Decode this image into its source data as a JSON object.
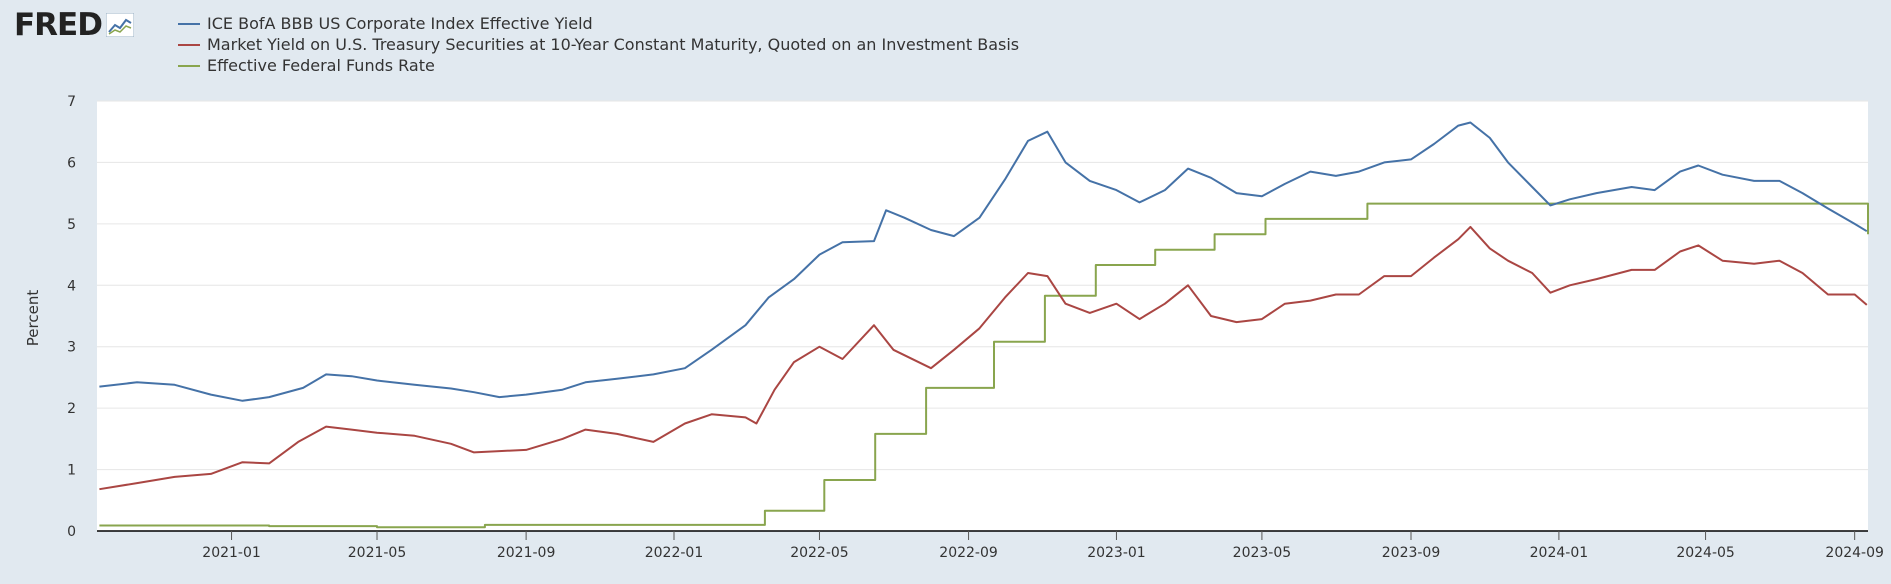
{
  "brand": {
    "logo_text": "FRED",
    "icon": "fred-chart-icon"
  },
  "legend_position": "top-left",
  "chart_data": {
    "type": "line",
    "title": "",
    "xlabel": "",
    "ylabel": "Percent",
    "ylim": [
      0,
      7
    ],
    "y_ticks": [
      0,
      1,
      2,
      3,
      4,
      5,
      6,
      7
    ],
    "xlim": [
      "2020-09-12",
      "2024-09-12"
    ],
    "x_ticks": [
      "2021-01",
      "2021-05",
      "2021-09",
      "2022-01",
      "2022-05",
      "2022-09",
      "2023-01",
      "2023-05",
      "2023-09",
      "2024-01",
      "2024-05",
      "2024-09"
    ],
    "grid": {
      "horizontal": true,
      "vertical": false
    },
    "series": [
      {
        "name": "ICE BofA BBB US Corporate Index Effective Yield",
        "color": "#4572a7",
        "points": [
          [
            "2020-09-14",
            2.35
          ],
          [
            "2020-10-15",
            2.42
          ],
          [
            "2020-11-15",
            2.38
          ],
          [
            "2020-12-15",
            2.22
          ],
          [
            "2021-01-10",
            2.12
          ],
          [
            "2021-02-01",
            2.18
          ],
          [
            "2021-03-01",
            2.33
          ],
          [
            "2021-03-20",
            2.55
          ],
          [
            "2021-04-10",
            2.52
          ],
          [
            "2021-05-01",
            2.45
          ],
          [
            "2021-06-01",
            2.38
          ],
          [
            "2021-07-01",
            2.32
          ],
          [
            "2021-07-20",
            2.26
          ],
          [
            "2021-08-10",
            2.18
          ],
          [
            "2021-09-01",
            2.22
          ],
          [
            "2021-10-01",
            2.3
          ],
          [
            "2021-10-20",
            2.42
          ],
          [
            "2021-11-15",
            2.48
          ],
          [
            "2021-12-15",
            2.55
          ],
          [
            "2022-01-10",
            2.65
          ],
          [
            "2022-02-01",
            2.95
          ],
          [
            "2022-03-01",
            3.35
          ],
          [
            "2022-03-20",
            3.8
          ],
          [
            "2022-04-10",
            4.1
          ],
          [
            "2022-05-01",
            4.5
          ],
          [
            "2022-05-20",
            4.7
          ],
          [
            "2022-06-15",
            4.72
          ],
          [
            "2022-06-25",
            5.22
          ],
          [
            "2022-07-10",
            5.1
          ],
          [
            "2022-08-01",
            4.9
          ],
          [
            "2022-08-20",
            4.8
          ],
          [
            "2022-09-10",
            5.1
          ],
          [
            "2022-10-01",
            5.72
          ],
          [
            "2022-10-20",
            6.35
          ],
          [
            "2022-11-05",
            6.5
          ],
          [
            "2022-11-20",
            6.0
          ],
          [
            "2022-12-10",
            5.7
          ],
          [
            "2023-01-01",
            5.55
          ],
          [
            "2023-01-20",
            5.35
          ],
          [
            "2023-02-10",
            5.55
          ],
          [
            "2023-03-01",
            5.9
          ],
          [
            "2023-03-20",
            5.75
          ],
          [
            "2023-04-10",
            5.5
          ],
          [
            "2023-05-01",
            5.45
          ],
          [
            "2023-05-20",
            5.65
          ],
          [
            "2023-06-10",
            5.85
          ],
          [
            "2023-07-01",
            5.78
          ],
          [
            "2023-07-20",
            5.85
          ],
          [
            "2023-08-10",
            6.0
          ],
          [
            "2023-09-01",
            6.05
          ],
          [
            "2023-09-20",
            6.3
          ],
          [
            "2023-10-10",
            6.6
          ],
          [
            "2023-10-20",
            6.65
          ],
          [
            "2023-11-05",
            6.4
          ],
          [
            "2023-11-20",
            6.0
          ],
          [
            "2023-12-10",
            5.6
          ],
          [
            "2023-12-25",
            5.3
          ],
          [
            "2024-01-10",
            5.4
          ],
          [
            "2024-02-01",
            5.5
          ],
          [
            "2024-03-01",
            5.6
          ],
          [
            "2024-03-20",
            5.55
          ],
          [
            "2024-04-10",
            5.85
          ],
          [
            "2024-04-25",
            5.95
          ],
          [
            "2024-05-15",
            5.8
          ],
          [
            "2024-06-10",
            5.7
          ],
          [
            "2024-07-01",
            5.7
          ],
          [
            "2024-07-20",
            5.5
          ],
          [
            "2024-08-10",
            5.25
          ],
          [
            "2024-09-01",
            5.0
          ],
          [
            "2024-09-11",
            4.88
          ]
        ]
      },
      {
        "name": "Market Yield on U.S. Treasury Securities at 10-Year Constant Maturity, Quoted on an Investment Basis",
        "color": "#aa4643",
        "points": [
          [
            "2020-09-14",
            0.68
          ],
          [
            "2020-10-15",
            0.78
          ],
          [
            "2020-11-15",
            0.88
          ],
          [
            "2020-12-15",
            0.93
          ],
          [
            "2021-01-10",
            1.12
          ],
          [
            "2021-02-01",
            1.1
          ],
          [
            "2021-02-25",
            1.45
          ],
          [
            "2021-03-20",
            1.7
          ],
          [
            "2021-04-10",
            1.65
          ],
          [
            "2021-05-01",
            1.6
          ],
          [
            "2021-06-01",
            1.55
          ],
          [
            "2021-07-01",
            1.42
          ],
          [
            "2021-07-20",
            1.28
          ],
          [
            "2021-08-10",
            1.3
          ],
          [
            "2021-09-01",
            1.32
          ],
          [
            "2021-10-01",
            1.5
          ],
          [
            "2021-10-20",
            1.65
          ],
          [
            "2021-11-15",
            1.58
          ],
          [
            "2021-12-15",
            1.45
          ],
          [
            "2022-01-10",
            1.75
          ],
          [
            "2022-02-01",
            1.9
          ],
          [
            "2022-03-01",
            1.85
          ],
          [
            "2022-03-10",
            1.75
          ],
          [
            "2022-03-25",
            2.3
          ],
          [
            "2022-04-10",
            2.75
          ],
          [
            "2022-05-01",
            3.0
          ],
          [
            "2022-05-20",
            2.8
          ],
          [
            "2022-06-15",
            3.35
          ],
          [
            "2022-07-01",
            2.95
          ],
          [
            "2022-08-01",
            2.65
          ],
          [
            "2022-08-20",
            2.95
          ],
          [
            "2022-09-10",
            3.3
          ],
          [
            "2022-10-01",
            3.8
          ],
          [
            "2022-10-20",
            4.2
          ],
          [
            "2022-11-05",
            4.15
          ],
          [
            "2022-11-20",
            3.7
          ],
          [
            "2022-12-10",
            3.55
          ],
          [
            "2023-01-01",
            3.7
          ],
          [
            "2023-01-20",
            3.45
          ],
          [
            "2023-02-10",
            3.7
          ],
          [
            "2023-03-01",
            4.0
          ],
          [
            "2023-03-20",
            3.5
          ],
          [
            "2023-04-10",
            3.4
          ],
          [
            "2023-05-01",
            3.45
          ],
          [
            "2023-05-20",
            3.7
          ],
          [
            "2023-06-10",
            3.75
          ],
          [
            "2023-07-01",
            3.85
          ],
          [
            "2023-07-20",
            3.85
          ],
          [
            "2023-08-10",
            4.15
          ],
          [
            "2023-09-01",
            4.15
          ],
          [
            "2023-09-20",
            4.45
          ],
          [
            "2023-10-10",
            4.75
          ],
          [
            "2023-10-20",
            4.95
          ],
          [
            "2023-11-05",
            4.6
          ],
          [
            "2023-11-20",
            4.4
          ],
          [
            "2023-12-10",
            4.2
          ],
          [
            "2023-12-25",
            3.88
          ],
          [
            "2024-01-10",
            4.0
          ],
          [
            "2024-02-01",
            4.1
          ],
          [
            "2024-03-01",
            4.25
          ],
          [
            "2024-03-20",
            4.25
          ],
          [
            "2024-04-10",
            4.55
          ],
          [
            "2024-04-25",
            4.65
          ],
          [
            "2024-05-15",
            4.4
          ],
          [
            "2024-06-10",
            4.35
          ],
          [
            "2024-07-01",
            4.4
          ],
          [
            "2024-07-20",
            4.2
          ],
          [
            "2024-08-10",
            3.85
          ],
          [
            "2024-09-01",
            3.85
          ],
          [
            "2024-09-11",
            3.68
          ]
        ]
      },
      {
        "name": "Effective Federal Funds Rate",
        "color": "#89a54e",
        "step": true,
        "points": [
          [
            "2020-09-14",
            0.09
          ],
          [
            "2021-02-01",
            0.08
          ],
          [
            "2021-05-01",
            0.06
          ],
          [
            "2021-07-29",
            0.1
          ],
          [
            "2022-03-17",
            0.33
          ],
          [
            "2022-05-05",
            0.83
          ],
          [
            "2022-06-16",
            1.58
          ],
          [
            "2022-07-28",
            2.33
          ],
          [
            "2022-09-22",
            3.08
          ],
          [
            "2022-11-03",
            3.83
          ],
          [
            "2022-12-15",
            4.33
          ],
          [
            "2023-02-02",
            4.58
          ],
          [
            "2023-03-23",
            4.83
          ],
          [
            "2023-05-04",
            5.08
          ],
          [
            "2023-07-27",
            5.33
          ],
          [
            "2024-09-11",
            5.33
          ],
          [
            "2024-09-12",
            4.83
          ]
        ]
      }
    ]
  }
}
